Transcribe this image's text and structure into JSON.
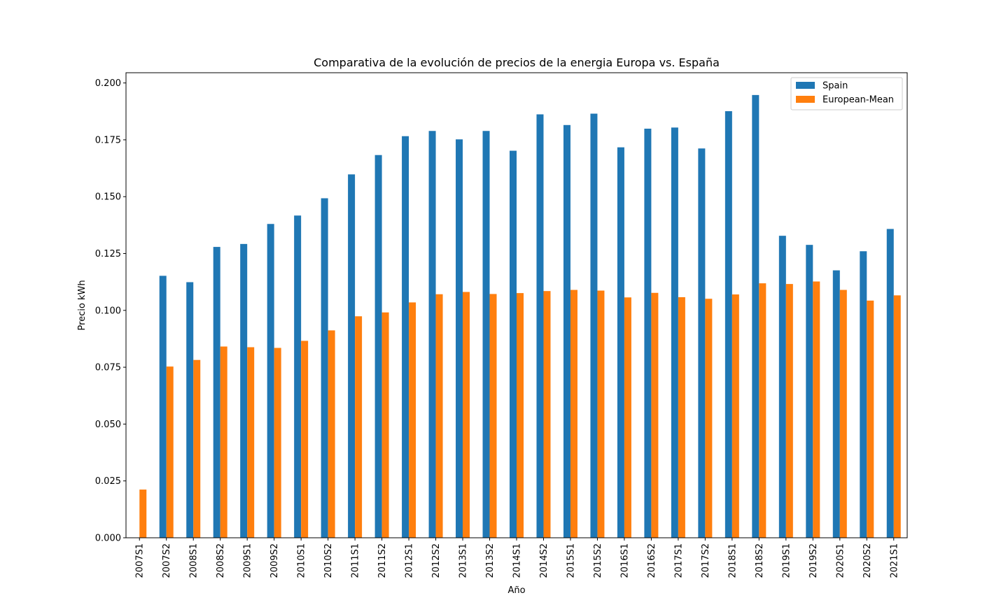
{
  "chart_data": {
    "type": "bar",
    "title": "Comparativa de la evolución de precios de la energia Europa vs. España",
    "xlabel": "Año",
    "ylabel": "Precio kWh",
    "ylim": [
      0,
      0.2045
    ],
    "yticks": [
      "0.000",
      "0.025",
      "0.050",
      "0.075",
      "0.100",
      "0.125",
      "0.150",
      "0.175",
      "0.200"
    ],
    "grid": false,
    "legend_position": "top-right",
    "categories": [
      "2007S1",
      "2007S2",
      "2008S1",
      "2008S2",
      "2009S1",
      "2009S2",
      "2010S1",
      "2010S2",
      "2011S1",
      "2011S2",
      "2012S1",
      "2012S2",
      "2013S1",
      "2013S2",
      "2014S1",
      "2014S2",
      "2015S1",
      "2015S2",
      "2016S1",
      "2016S2",
      "2017S1",
      "2017S2",
      "2018S1",
      "2018S2",
      "2019S1",
      "2019S2",
      "2020S1",
      "2020S2",
      "2021S1"
    ],
    "series": [
      {
        "name": "Spain",
        "color": "#1f77b4",
        "values": [
          null,
          0.1152,
          0.1124,
          0.1279,
          0.1292,
          0.138,
          0.1417,
          0.1493,
          0.1598,
          0.1683,
          0.1766,
          0.1789,
          0.1752,
          0.1789,
          0.1702,
          0.1862,
          0.1815,
          0.1865,
          0.1717,
          0.1799,
          0.1804,
          0.1712,
          0.1876,
          0.1947,
          0.1328,
          0.1288,
          0.1176,
          0.126,
          0.1358
        ]
      },
      {
        "name": "European-Mean",
        "color": "#ff7f0e",
        "values": [
          0.0212,
          0.0753,
          0.0782,
          0.0841,
          0.0838,
          0.0835,
          0.0866,
          0.0912,
          0.0974,
          0.0991,
          0.1035,
          0.1071,
          0.1081,
          0.1072,
          0.1076,
          0.1085,
          0.109,
          0.1087,
          0.1057,
          0.1077,
          0.1058,
          0.1051,
          0.107,
          0.1119,
          0.1116,
          0.1127,
          0.109,
          0.1043,
          0.1066
        ]
      }
    ]
  }
}
